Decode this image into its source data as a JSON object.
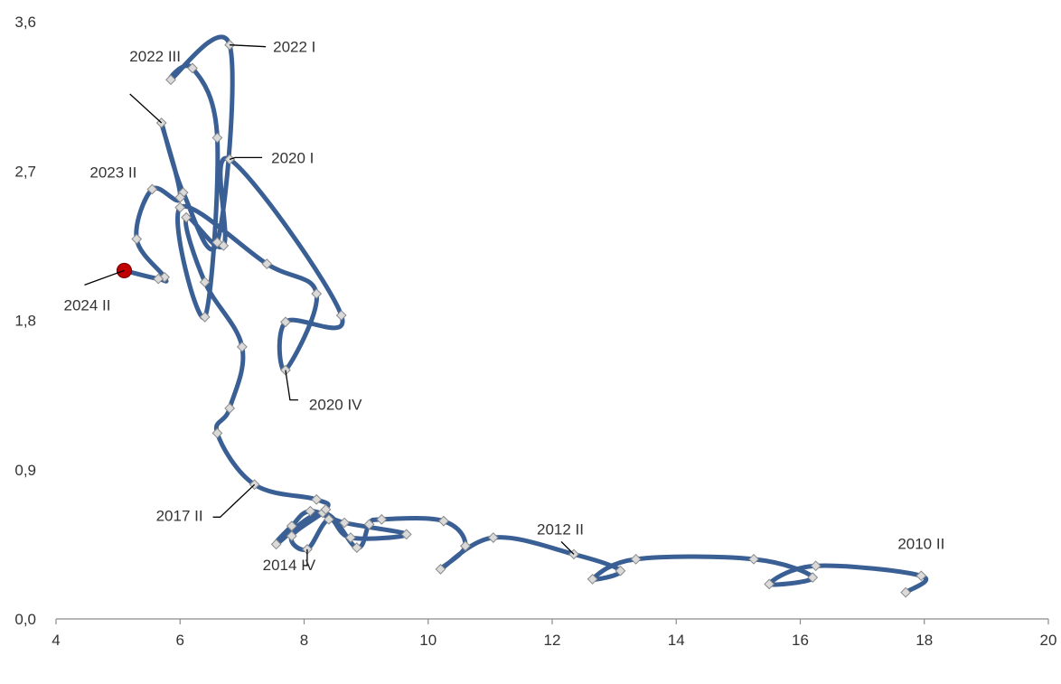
{
  "chart_data": {
    "type": "line",
    "title": "",
    "xlabel": "",
    "ylabel": "",
    "xlim": [
      4,
      20
    ],
    "ylim": [
      0,
      3.6
    ],
    "x_ticks": [
      "4",
      "6",
      "8",
      "10",
      "12",
      "14",
      "16",
      "18",
      "20"
    ],
    "y_ticks": [
      "0,0",
      "0,9",
      "1,8",
      "2,7",
      "3,6"
    ],
    "grid": false,
    "legend": "none",
    "colors": {
      "line": "#3a5f94",
      "marker_fill": "#dadada",
      "marker_stroke": "#8a8a8a",
      "highlight": "#c00000"
    },
    "series": [
      {
        "points": [
          {
            "x": 17.7,
            "y": 0.16
          },
          {
            "x": 17.95,
            "y": 0.26,
            "label": "2010 II"
          },
          {
            "x": 16.25,
            "y": 0.32
          },
          {
            "x": 15.5,
            "y": 0.21
          },
          {
            "x": 16.2,
            "y": 0.25
          },
          {
            "x": 15.25,
            "y": 0.36
          },
          {
            "x": 13.35,
            "y": 0.36
          },
          {
            "x": 12.65,
            "y": 0.24
          },
          {
            "x": 13.1,
            "y": 0.29
          },
          {
            "x": 12.35,
            "y": 0.39,
            "label": "2012 II"
          },
          {
            "x": 11.05,
            "y": 0.49
          },
          {
            "x": 10.2,
            "y": 0.3
          },
          {
            "x": 10.6,
            "y": 0.44
          },
          {
            "x": 10.25,
            "y": 0.59
          },
          {
            "x": 9.25,
            "y": 0.6
          },
          {
            "x": 9.05,
            "y": 0.57
          },
          {
            "x": 8.85,
            "y": 0.43
          },
          {
            "x": 8.3,
            "y": 0.64
          },
          {
            "x": 7.55,
            "y": 0.45
          },
          {
            "x": 7.8,
            "y": 0.56
          },
          {
            "x": 8.1,
            "y": 0.65
          },
          {
            "x": 8.65,
            "y": 0.58
          },
          {
            "x": 9.65,
            "y": 0.51
          },
          {
            "x": 8.75,
            "y": 0.49
          },
          {
            "x": 8.4,
            "y": 0.6
          },
          {
            "x": 8.05,
            "y": 0.42,
            "label": "2014 IV"
          },
          {
            "x": 7.8,
            "y": 0.5
          },
          {
            "x": 8.35,
            "y": 0.66
          },
          {
            "x": 8.2,
            "y": 0.72
          },
          {
            "x": 7.2,
            "y": 0.81,
            "label": "2017 II"
          },
          {
            "x": 6.6,
            "y": 1.12
          },
          {
            "x": 6.8,
            "y": 1.27
          },
          {
            "x": 7.0,
            "y": 1.64
          },
          {
            "x": 6.4,
            "y": 2.03
          },
          {
            "x": 6.1,
            "y": 2.42
          },
          {
            "x": 6.7,
            "y": 2.25
          },
          {
            "x": 6.8,
            "y": 2.77,
            "label": "2020 I"
          },
          {
            "x": 8.6,
            "y": 1.83
          },
          {
            "x": 7.7,
            "y": 1.79
          },
          {
            "x": 7.7,
            "y": 1.5,
            "label": "2020 IV"
          },
          {
            "x": 8.2,
            "y": 1.96
          },
          {
            "x": 7.4,
            "y": 2.14
          },
          {
            "x": 6.0,
            "y": 2.48
          },
          {
            "x": 6.4,
            "y": 1.82
          },
          {
            "x": 6.6,
            "y": 2.9
          },
          {
            "x": 6.2,
            "y": 3.32
          },
          {
            "x": 5.85,
            "y": 3.25
          },
          {
            "x": 6.8,
            "y": 3.46,
            "label": "2022 I"
          },
          {
            "x": 6.6,
            "y": 2.27
          },
          {
            "x": 6.05,
            "y": 2.57
          },
          {
            "x": 5.7,
            "y": 2.99,
            "label": "2022 III"
          },
          {
            "x": 6.0,
            "y": 2.54
          },
          {
            "x": 5.55,
            "y": 2.59,
            "label": "2023 II"
          },
          {
            "x": 5.3,
            "y": 2.29
          },
          {
            "x": 5.75,
            "y": 2.06
          },
          {
            "x": 5.65,
            "y": 2.05
          },
          {
            "x": 5.1,
            "y": 2.1,
            "label": "2024 II",
            "highlight": true
          }
        ]
      }
    ]
  }
}
